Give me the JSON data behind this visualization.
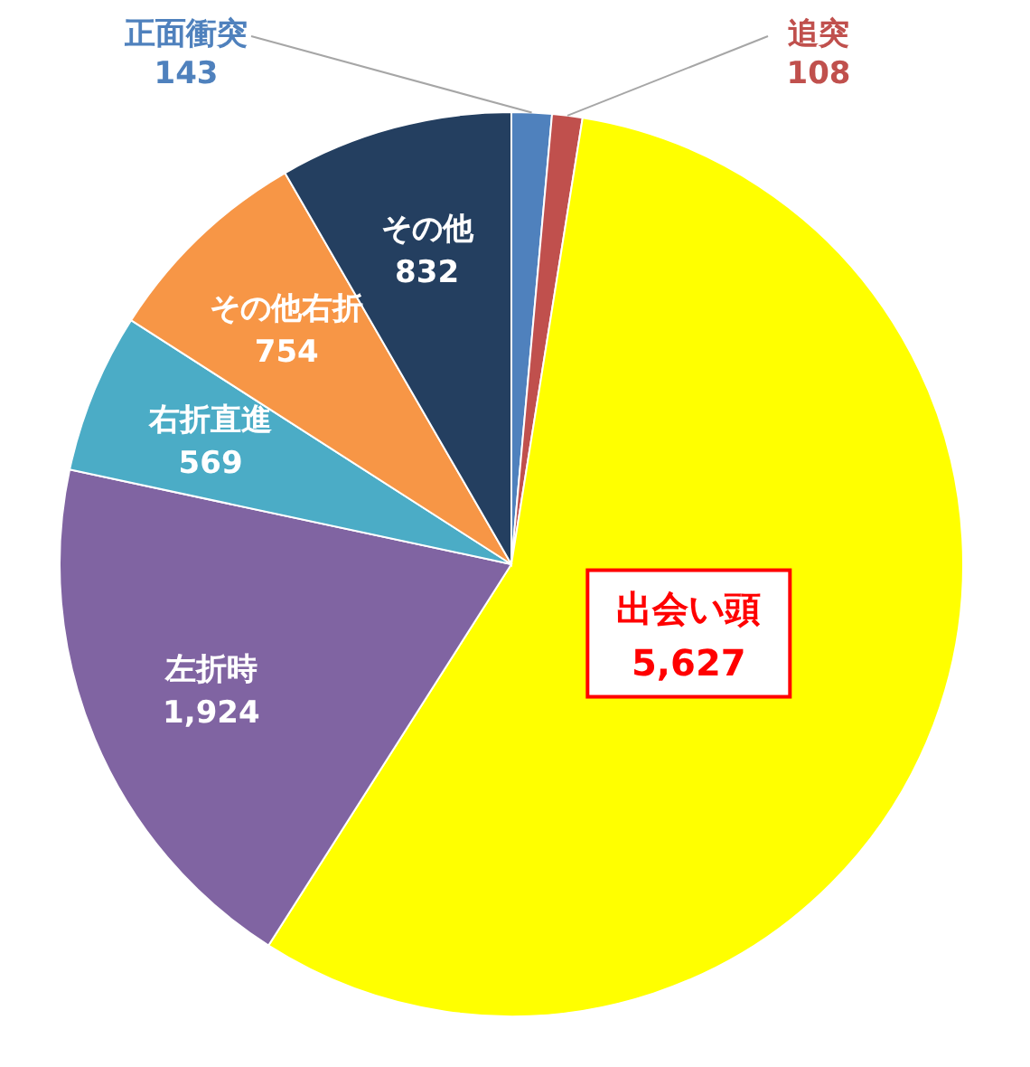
{
  "chart_data": {
    "type": "pie",
    "categories": [
      "正面衝突",
      "追突",
      "出会い頭",
      "左折時",
      "右折直進",
      "その他右折",
      "その他"
    ],
    "values": [
      143,
      108,
      5627,
      1924,
      569,
      754,
      832
    ],
    "value_labels": [
      "143",
      "108",
      "5,627",
      "1,924",
      "569",
      "754",
      "832"
    ],
    "colors": [
      "#4f81bd",
      "#c0504d",
      "#ffff00",
      "#8064a2",
      "#4bacc6",
      "#f79646",
      "#243f60"
    ],
    "legend": false
  }
}
